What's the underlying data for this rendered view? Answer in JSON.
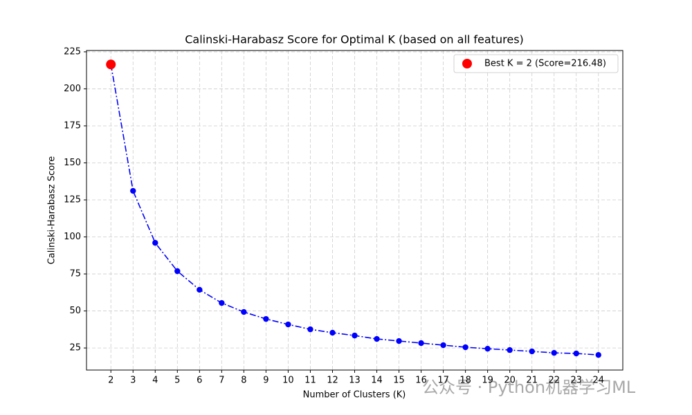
{
  "chart_data": {
    "type": "line",
    "title": "Calinski-Harabasz Score for Optimal K (based on all features)",
    "x_label": "Number of Clusters (K)",
    "y_label": "Calinski-Harabasz Score",
    "x": [
      2,
      3,
      4,
      5,
      6,
      7,
      8,
      9,
      10,
      11,
      12,
      13,
      14,
      15,
      16,
      17,
      18,
      19,
      20,
      21,
      22,
      23,
      24
    ],
    "series": [
      {
        "color": "#0000ff",
        "values": [
          216.48,
          131.1,
          96.0,
          76.9,
          64.3,
          55.4,
          49.3,
          44.6,
          40.9,
          37.6,
          35.3,
          33.4,
          31.1,
          29.7,
          28.3,
          26.9,
          25.5,
          24.5,
          23.6,
          22.7,
          21.7,
          21.3,
          20.3
        ]
      }
    ],
    "best": {
      "name": "Best K = 2 (Score=216.48)",
      "x": 2,
      "value": 216.48,
      "color": "#ff0000"
    },
    "xlim": [
      0.9,
      25.1
    ],
    "xticks": [
      2,
      3,
      4,
      5,
      6,
      7,
      8,
      9,
      10,
      11,
      12,
      13,
      14,
      15,
      16,
      17,
      18,
      19,
      20,
      21,
      22,
      23,
      24
    ],
    "ylim": [
      10.1,
      225.9
    ],
    "yticks": [
      25,
      50,
      75,
      100,
      125,
      150,
      175,
      200,
      225
    ],
    "grid": true,
    "legend": "upper right"
  },
  "watermark": "公众号 · Python机器学习ML"
}
